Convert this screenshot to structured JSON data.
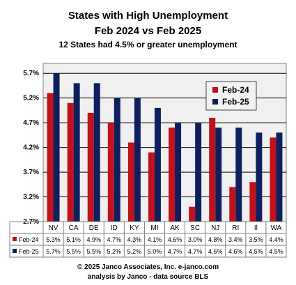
{
  "title": "States with High Unemployment",
  "subtitle": "Feb 2024 vs Feb 2025",
  "note": "12  States had 4.5% or greater unemployment",
  "footer_line1": "© 2025 Janco Associates, Inc. e-janco.com",
  "footer_line2": "analysis by Janco - data source BLS",
  "colors": {
    "feb24": "#c0121a",
    "feb25": "#0f1f5e",
    "plot_bg": "#f0f0f0",
    "legend_bg": "#f2f2f2"
  },
  "chart_data": {
    "type": "bar",
    "title": "States with High Unemployment",
    "subtitle": "Feb 2024 vs Feb 2025",
    "categories": [
      "NV",
      "CA",
      "DE",
      "ID",
      "KY",
      "MI",
      "AK",
      "SC",
      "NJ",
      "RI",
      "Il",
      "WA"
    ],
    "series": [
      {
        "name": "Feb-24",
        "values": [
          5.3,
          5.1,
          4.9,
          4.7,
          4.3,
          4.1,
          4.6,
          3.0,
          4.8,
          3.4,
          3.5,
          4.4
        ],
        "labels": [
          "5.3%",
          "5.1%",
          "4.9%",
          "4.7%",
          "4.3%",
          "4.1%",
          "4.6%",
          "3.0%",
          "4.8%",
          "3.4%",
          "3.5%",
          "4.4%"
        ]
      },
      {
        "name": "Feb-25",
        "values": [
          5.7,
          5.5,
          5.5,
          5.2,
          5.2,
          5.0,
          4.7,
          4.7,
          4.6,
          4.6,
          4.5,
          4.5
        ],
        "labels": [
          "5.7%",
          "5.5%",
          "5.5%",
          "5.2%",
          "5.2%",
          "5.0%",
          "4.7%",
          "4.7%",
          "4.6%",
          "4.6%",
          "4.5%",
          "4.5%"
        ]
      }
    ],
    "ylim": [
      2.7,
      5.9
    ],
    "yticks": [
      2.7,
      3.2,
      3.7,
      4.2,
      4.7,
      5.2,
      5.7
    ],
    "ytick_labels": [
      "2.7%",
      "3.2%",
      "3.7%",
      "4.2%",
      "4.7%",
      "5.2%",
      "5.7%"
    ],
    "grid": true,
    "legend_position": "top-right",
    "data_table": true
  }
}
